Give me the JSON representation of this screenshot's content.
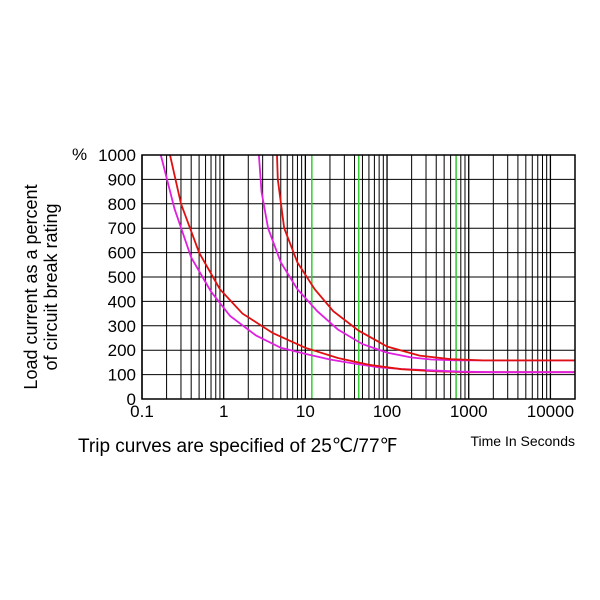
{
  "chart_data": {
    "type": "line",
    "xscale": "log",
    "xlim": [
      0.1,
      20000
    ],
    "ylim": [
      0,
      1000
    ],
    "grid": true,
    "y_unit_symbol": "%",
    "ylabel_lines": [
      "Load current as a percent",
      "of circuit break rating"
    ],
    "xlabel": "Time In Seconds",
    "caption": "Trip curves are specified of 25℃/77℉",
    "x_ticks": [
      {
        "value": 0.1,
        "label": "0.1"
      },
      {
        "value": 1,
        "label": "1"
      },
      {
        "value": 10,
        "label": "10"
      },
      {
        "value": 100,
        "label": "100"
      },
      {
        "value": 1000,
        "label": "1000"
      },
      {
        "value": 10000,
        "label": "10000"
      }
    ],
    "y_ticks": [
      {
        "value": 0,
        "label": "0"
      },
      {
        "value": 100,
        "label": "100"
      },
      {
        "value": 200,
        "label": "200"
      },
      {
        "value": 300,
        "label": "300"
      },
      {
        "value": 400,
        "label": "400"
      },
      {
        "value": 500,
        "label": "500"
      },
      {
        "value": 600,
        "label": "600"
      },
      {
        "value": 700,
        "label": "700"
      },
      {
        "value": 800,
        "label": "800"
      },
      {
        "value": 900,
        "label": "900"
      },
      {
        "value": 1000,
        "label": "1000"
      }
    ],
    "highlight_x": [
      12,
      45,
      700
    ],
    "series": [
      {
        "color": "#e020e0",
        "style": "magenta-left",
        "points": [
          [
            0.17,
            1000
          ],
          [
            0.25,
            780
          ],
          [
            0.4,
            580
          ],
          [
            0.7,
            440
          ],
          [
            1.2,
            340
          ],
          [
            2.5,
            260
          ],
          [
            5,
            210
          ],
          [
            10,
            185
          ],
          [
            20,
            162
          ],
          [
            40,
            145
          ],
          [
            80,
            130
          ],
          [
            150,
            123
          ],
          [
            300,
            118
          ]
        ]
      },
      {
        "color": "#e020e0",
        "style": "magenta-right",
        "points": [
          [
            2.7,
            1000
          ],
          [
            2.9,
            850
          ],
          [
            3.5,
            700
          ],
          [
            5,
            560
          ],
          [
            8,
            450
          ],
          [
            14,
            360
          ],
          [
            25,
            285
          ],
          [
            50,
            225
          ],
          [
            100,
            190
          ],
          [
            200,
            170
          ],
          [
            350,
            162
          ],
          [
            700,
            158
          ],
          [
            20000,
            158
          ]
        ]
      },
      {
        "color": "#e01010",
        "style": "red-left",
        "points": [
          [
            0.22,
            1000
          ],
          [
            0.3,
            800
          ],
          [
            0.5,
            600
          ],
          [
            0.9,
            450
          ],
          [
            1.7,
            350
          ],
          [
            4,
            270
          ],
          [
            10,
            210
          ],
          [
            25,
            168
          ],
          [
            60,
            140
          ],
          [
            150,
            122
          ],
          [
            400,
            113
          ],
          [
            1000,
            110
          ],
          [
            20000,
            110
          ]
        ]
      },
      {
        "color": "#e01010",
        "style": "red-right",
        "points": [
          [
            4.5,
            1000
          ],
          [
            4.6,
            900
          ],
          [
            5.5,
            700
          ],
          [
            8,
            560
          ],
          [
            13,
            450
          ],
          [
            22,
            360
          ],
          [
            45,
            280
          ],
          [
            100,
            215
          ],
          [
            250,
            178
          ],
          [
            600,
            163
          ],
          [
            1500,
            158
          ],
          [
            20000,
            158
          ]
        ]
      },
      {
        "color": "#e020e0",
        "style": "magenta-bottom",
        "points": [
          [
            300,
            118
          ],
          [
            800,
            112
          ],
          [
            2000,
            110
          ],
          [
            20000,
            110
          ]
        ]
      }
    ],
    "colors": {
      "grid": "#000000",
      "highlight_grid": "#33cc33",
      "hatch": "#e020e0",
      "red": "#e01010"
    }
  }
}
